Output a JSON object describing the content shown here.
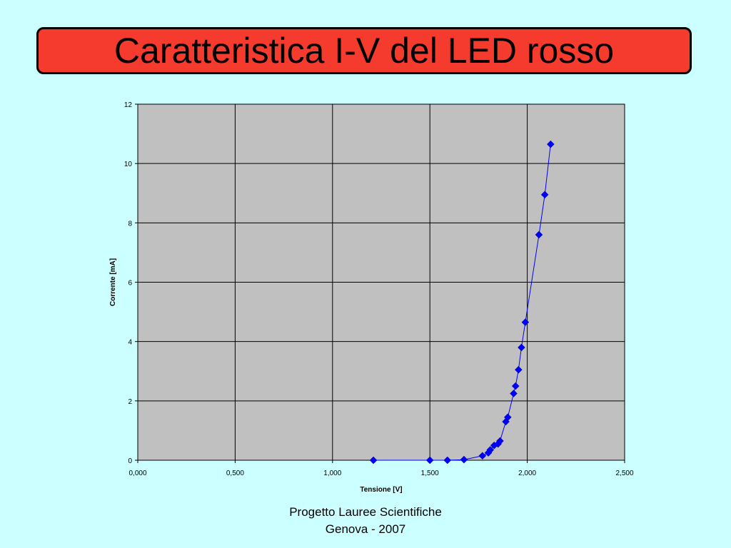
{
  "slide": {
    "title": "Caratteristica I-V del LED rosso",
    "footer_line1": "Progetto Lauree Scientifiche",
    "footer_line2": "Genova - 2007"
  },
  "colors": {
    "background": "#ccffff",
    "title_box": "#f53b2e",
    "plot_area": "#c0c0c0",
    "series": "#0000ff"
  },
  "chart_data": {
    "type": "scatter",
    "xlabel": "Tensione [V]",
    "ylabel": "Corrente [mA]",
    "xlim": [
      0,
      2.5
    ],
    "ylim": [
      0,
      12
    ],
    "xticks": [
      0,
      0.5,
      1.0,
      1.5,
      2.0,
      2.5
    ],
    "xtick_labels": [
      "0,000",
      "0,500",
      "1,000",
      "1,500",
      "2,000",
      "2,500"
    ],
    "yticks": [
      0,
      2,
      4,
      6,
      8,
      10,
      12
    ],
    "ytick_labels": [
      "0",
      "2",
      "4",
      "6",
      "8",
      "10",
      "12"
    ],
    "grid": true,
    "legend": false,
    "marker": "diamond",
    "connected": true,
    "series": [
      {
        "x": [
          1.21,
          1.5,
          1.59,
          1.675,
          1.77,
          1.8,
          1.81,
          1.83,
          1.85,
          1.86,
          1.89,
          1.9,
          1.93,
          1.94,
          1.955,
          1.97,
          1.99,
          2.06,
          2.09,
          2.12
        ],
        "y": [
          0.0,
          0.0,
          0.0,
          0.02,
          0.15,
          0.25,
          0.35,
          0.5,
          0.55,
          0.65,
          1.3,
          1.45,
          2.25,
          2.5,
          3.05,
          3.8,
          4.65,
          7.6,
          8.95,
          10.65
        ]
      }
    ]
  }
}
